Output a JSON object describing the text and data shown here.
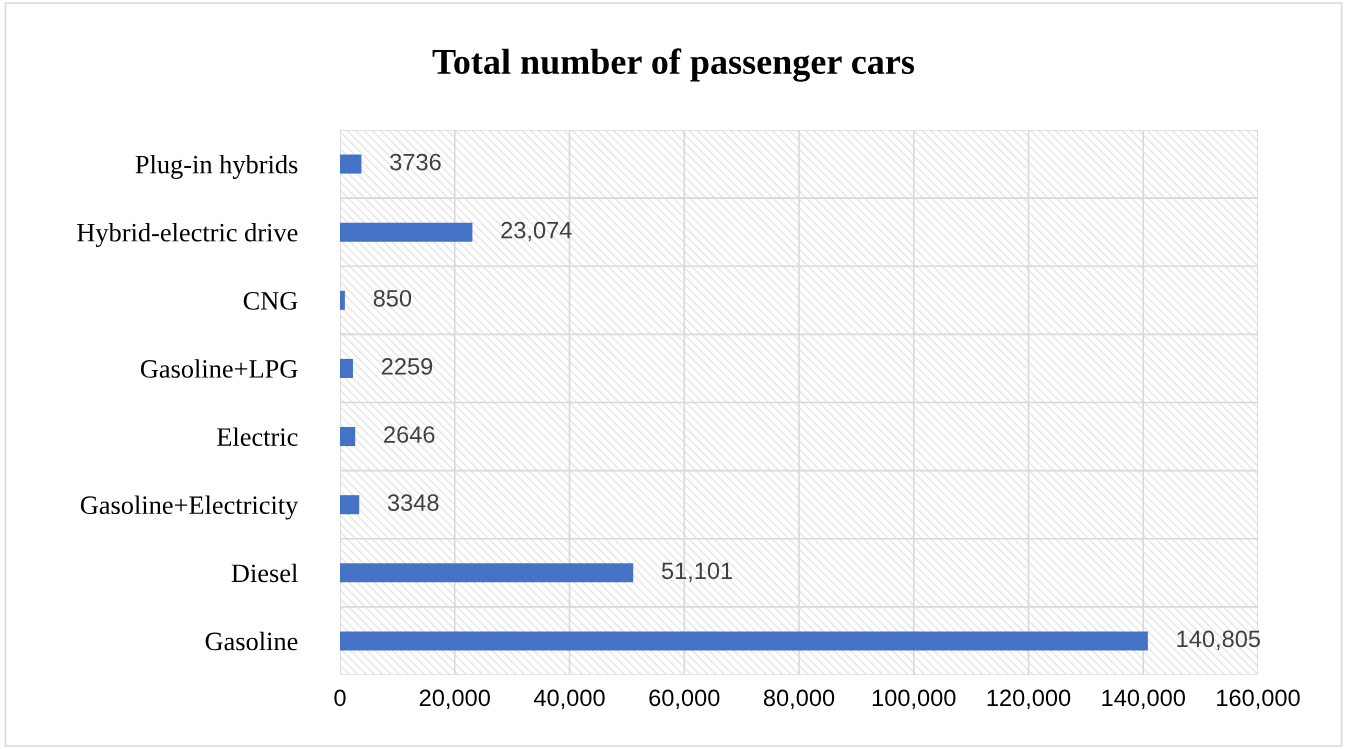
{
  "chart_data": {
    "type": "bar",
    "orientation": "horizontal",
    "title": "Total number of passenger cars",
    "categories": [
      "Plug-in hybrids",
      "Hybrid-electric drive",
      "CNG",
      "Gasoline+LPG",
      "Electric",
      "Gasoline+Electricity",
      "Diesel",
      "Gasoline"
    ],
    "values": [
      3736,
      23074,
      850,
      2259,
      2646,
      3348,
      51101,
      140805
    ],
    "value_labels": [
      "3736",
      "23,074",
      "850",
      "2259",
      "2646",
      "3348",
      "51,101",
      "140,805"
    ],
    "color": "#4472c4",
    "xlim": [
      0,
      160000
    ],
    "xticks": [
      0,
      {
        "value": 20000,
        "label": "20,000"
      },
      {
        "value": 40000,
        "label": "40,000"
      },
      {
        "value": 60000,
        "label": "60,000"
      },
      {
        "value": 80000,
        "label": "80,000"
      },
      {
        "value": 100000,
        "label": "100,000"
      },
      {
        "value": 120000,
        "label": "120,000"
      },
      {
        "value": 140000,
        "label": "140,000"
      },
      {
        "value": 160000,
        "label": "160,000"
      }
    ],
    "grid": true,
    "legend": false
  }
}
